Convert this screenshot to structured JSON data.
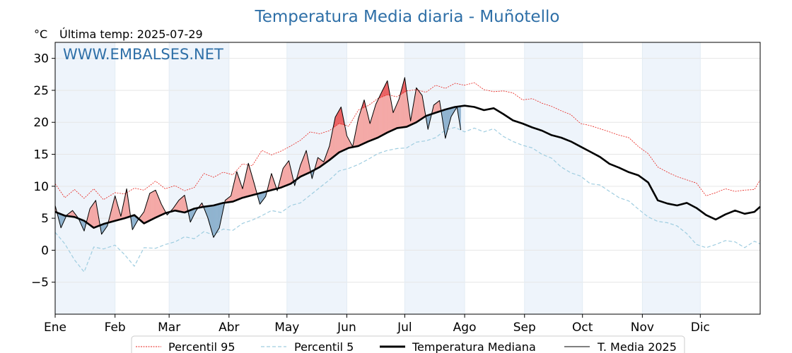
{
  "chart_data": {
    "type": "line",
    "title": "Temperatura Media diaria - Muñotello",
    "unit": "°C",
    "subtitle": "Última temp: 2025-07-29",
    "watermark": "WWW.EMBALSES.NET",
    "xlim": [
      0,
      365
    ],
    "ylim": [
      -10,
      32.5
    ],
    "yticks": [
      30,
      25,
      20,
      15,
      10,
      5,
      0,
      -5
    ],
    "ytick_labels": [
      "30",
      "25",
      "20",
      "15",
      "10",
      "5",
      "0",
      "−5"
    ],
    "months": [
      "Ene",
      "Feb",
      "Mar",
      "Abr",
      "May",
      "Jun",
      "Jul",
      "Ago",
      "Sep",
      "Oct",
      "Nov",
      "Dic"
    ],
    "month_starts": [
      0,
      31,
      59,
      90,
      120,
      151,
      181,
      212,
      243,
      273,
      304,
      334
    ],
    "grid": true,
    "legend_position": "bottom",
    "colors": {
      "p95": "#e8221c",
      "p5": "#9fcde0",
      "median": "#000000",
      "y2025": "#000000",
      "above": "#f4a8a6",
      "above_strong": "#e8585a",
      "below": "#8fb3cf",
      "band": "#eef4fb"
    },
    "series": [
      {
        "name": "Percentil 95",
        "key": "p95",
        "x": [
          0,
          5,
          10,
          15,
          20,
          25,
          31,
          36,
          41,
          46,
          52,
          57,
          62,
          67,
          72,
          77,
          82,
          87,
          92,
          97,
          102,
          107,
          112,
          117,
          122,
          127,
          132,
          137,
          142,
          147,
          152,
          157,
          162,
          167,
          172,
          177,
          182,
          187,
          192,
          197,
          202,
          207,
          212,
          217,
          222,
          227,
          232,
          237,
          242,
          247,
          252,
          257,
          262,
          267,
          272,
          277,
          282,
          287,
          292,
          297,
          302,
          307,
          312,
          317,
          322,
          327,
          332,
          337,
          342,
          347,
          352,
          357,
          362,
          365
        ],
        "y": [
          10.4,
          8.2,
          9.5,
          8.1,
          9.6,
          7.9,
          9.0,
          8.8,
          9.7,
          9.4,
          10.8,
          9.6,
          10.1,
          9.3,
          9.8,
          12.0,
          11.4,
          12.2,
          11.8,
          13.5,
          13.2,
          15.6,
          14.9,
          15.5,
          16.3,
          17.2,
          18.5,
          18.2,
          18.7,
          19.8,
          19.4,
          21.9,
          22.6,
          23.7,
          24.3,
          24.0,
          24.9,
          25.1,
          24.7,
          25.8,
          25.3,
          26.1,
          25.8,
          26.2,
          25.1,
          24.8,
          24.9,
          24.6,
          23.5,
          23.7,
          23.0,
          22.5,
          21.8,
          21.2,
          19.8,
          19.5,
          19.0,
          18.5,
          18.0,
          17.6,
          16.2,
          15.1,
          13.0,
          12.2,
          11.5,
          11.0,
          10.5,
          8.5,
          9.0,
          9.6,
          9.2,
          9.4,
          9.5,
          11.0
        ]
      },
      {
        "name": "Percentil 5",
        "key": "p5",
        "x": [
          0,
          5,
          10,
          15,
          20,
          25,
          31,
          36,
          41,
          46,
          52,
          57,
          62,
          67,
          72,
          77,
          82,
          87,
          92,
          97,
          102,
          107,
          112,
          117,
          122,
          127,
          132,
          137,
          142,
          147,
          152,
          157,
          162,
          167,
          172,
          177,
          182,
          187,
          192,
          197,
          202,
          207,
          212,
          217,
          222,
          227,
          232,
          237,
          242,
          247,
          252,
          257,
          262,
          267,
          272,
          277,
          282,
          287,
          292,
          297,
          302,
          307,
          312,
          317,
          322,
          327,
          332,
          337,
          342,
          347,
          352,
          357,
          362,
          365
        ],
        "y": [
          2.8,
          1.0,
          -1.5,
          -3.4,
          0.5,
          0.2,
          0.8,
          -0.7,
          -2.5,
          0.4,
          0.3,
          0.9,
          1.3,
          2.1,
          1.8,
          2.9,
          2.4,
          3.3,
          3.1,
          4.2,
          4.7,
          5.4,
          6.2,
          5.9,
          7.0,
          7.4,
          8.6,
          9.8,
          11.0,
          12.4,
          12.8,
          13.4,
          14.2,
          15.1,
          15.6,
          15.9,
          16.0,
          16.9,
          17.1,
          17.6,
          18.8,
          19.2,
          18.5,
          19.1,
          18.5,
          19.0,
          17.8,
          17.0,
          16.4,
          16.0,
          15.0,
          14.4,
          13.0,
          12.1,
          11.6,
          10.4,
          10.2,
          9.2,
          8.2,
          7.7,
          6.4,
          5.2,
          4.5,
          4.3,
          3.8,
          2.6,
          0.9,
          0.4,
          0.9,
          1.5,
          1.3,
          0.4,
          1.4,
          1.0
        ]
      },
      {
        "name": "Temperatura Mediana",
        "key": "median",
        "x": [
          0,
          5,
          10,
          15,
          20,
          25,
          31,
          36,
          41,
          46,
          52,
          57,
          62,
          67,
          72,
          77,
          82,
          87,
          92,
          97,
          102,
          107,
          112,
          117,
          122,
          127,
          132,
          137,
          142,
          147,
          152,
          157,
          162,
          167,
          172,
          177,
          182,
          187,
          192,
          197,
          202,
          207,
          212,
          217,
          222,
          227,
          232,
          237,
          242,
          247,
          252,
          257,
          262,
          267,
          272,
          277,
          282,
          287,
          292,
          297,
          302,
          307,
          312,
          317,
          322,
          327,
          332,
          337,
          342,
          347,
          352,
          357,
          362,
          365
        ],
        "y": [
          6.0,
          5.4,
          5.2,
          4.6,
          3.5,
          4.1,
          4.6,
          5.0,
          5.5,
          4.2,
          5.1,
          5.8,
          6.2,
          5.9,
          6.5,
          6.8,
          7.0,
          7.4,
          7.6,
          8.2,
          8.6,
          9.0,
          9.4,
          9.8,
          10.4,
          11.5,
          12.2,
          13.0,
          14.1,
          15.3,
          16.0,
          16.3,
          17.0,
          17.6,
          18.4,
          19.1,
          19.3,
          20.0,
          21.0,
          21.5,
          22.0,
          22.4,
          22.6,
          22.4,
          21.9,
          22.2,
          21.3,
          20.3,
          19.8,
          19.2,
          18.7,
          18.0,
          17.6,
          17.0,
          16.2,
          15.4,
          14.6,
          13.5,
          12.9,
          12.2,
          11.7,
          10.6,
          7.8,
          7.3,
          7.0,
          7.4,
          6.6,
          5.5,
          4.8,
          5.6,
          6.2,
          5.7,
          6.0,
          6.8
        ]
      },
      {
        "name": "T. Media 2025",
        "key": "y2025",
        "x": [
          0,
          3,
          6,
          9,
          12,
          15,
          18,
          21,
          24,
          27,
          31,
          34,
          37,
          40,
          43,
          46,
          49,
          52,
          55,
          58,
          61,
          64,
          67,
          70,
          73,
          76,
          79,
          82,
          85,
          88,
          91,
          94,
          97,
          100,
          103,
          106,
          109,
          112,
          115,
          118,
          121,
          124,
          127,
          130,
          133,
          136,
          139,
          142,
          145,
          148,
          151,
          154,
          157,
          160,
          163,
          166,
          169,
          172,
          175,
          178,
          181,
          184,
          187,
          190,
          193,
          196,
          199,
          202,
          205,
          208,
          210
        ],
        "y": [
          7.0,
          3.5,
          5.5,
          6.2,
          5.0,
          3.0,
          6.5,
          7.8,
          2.5,
          3.8,
          8.5,
          5.3,
          9.6,
          3.2,
          4.8,
          6.0,
          8.9,
          9.4,
          7.2,
          5.5,
          6.5,
          7.8,
          8.6,
          4.4,
          6.2,
          7.4,
          5.1,
          2.0,
          3.5,
          7.8,
          8.5,
          12.3,
          9.6,
          13.6,
          10.5,
          7.2,
          8.4,
          12.0,
          9.3,
          12.8,
          14.0,
          10.1,
          13.3,
          15.6,
          11.2,
          14.5,
          13.8,
          16.3,
          20.8,
          22.4,
          17.9,
          16.2,
          20.6,
          23.5,
          19.8,
          22.8,
          24.7,
          26.5,
          21.5,
          23.6,
          27.0,
          20.2,
          25.4,
          24.2,
          18.9,
          22.7,
          23.4,
          17.5,
          20.9,
          22.4,
          18.8
        ]
      }
    ]
  }
}
